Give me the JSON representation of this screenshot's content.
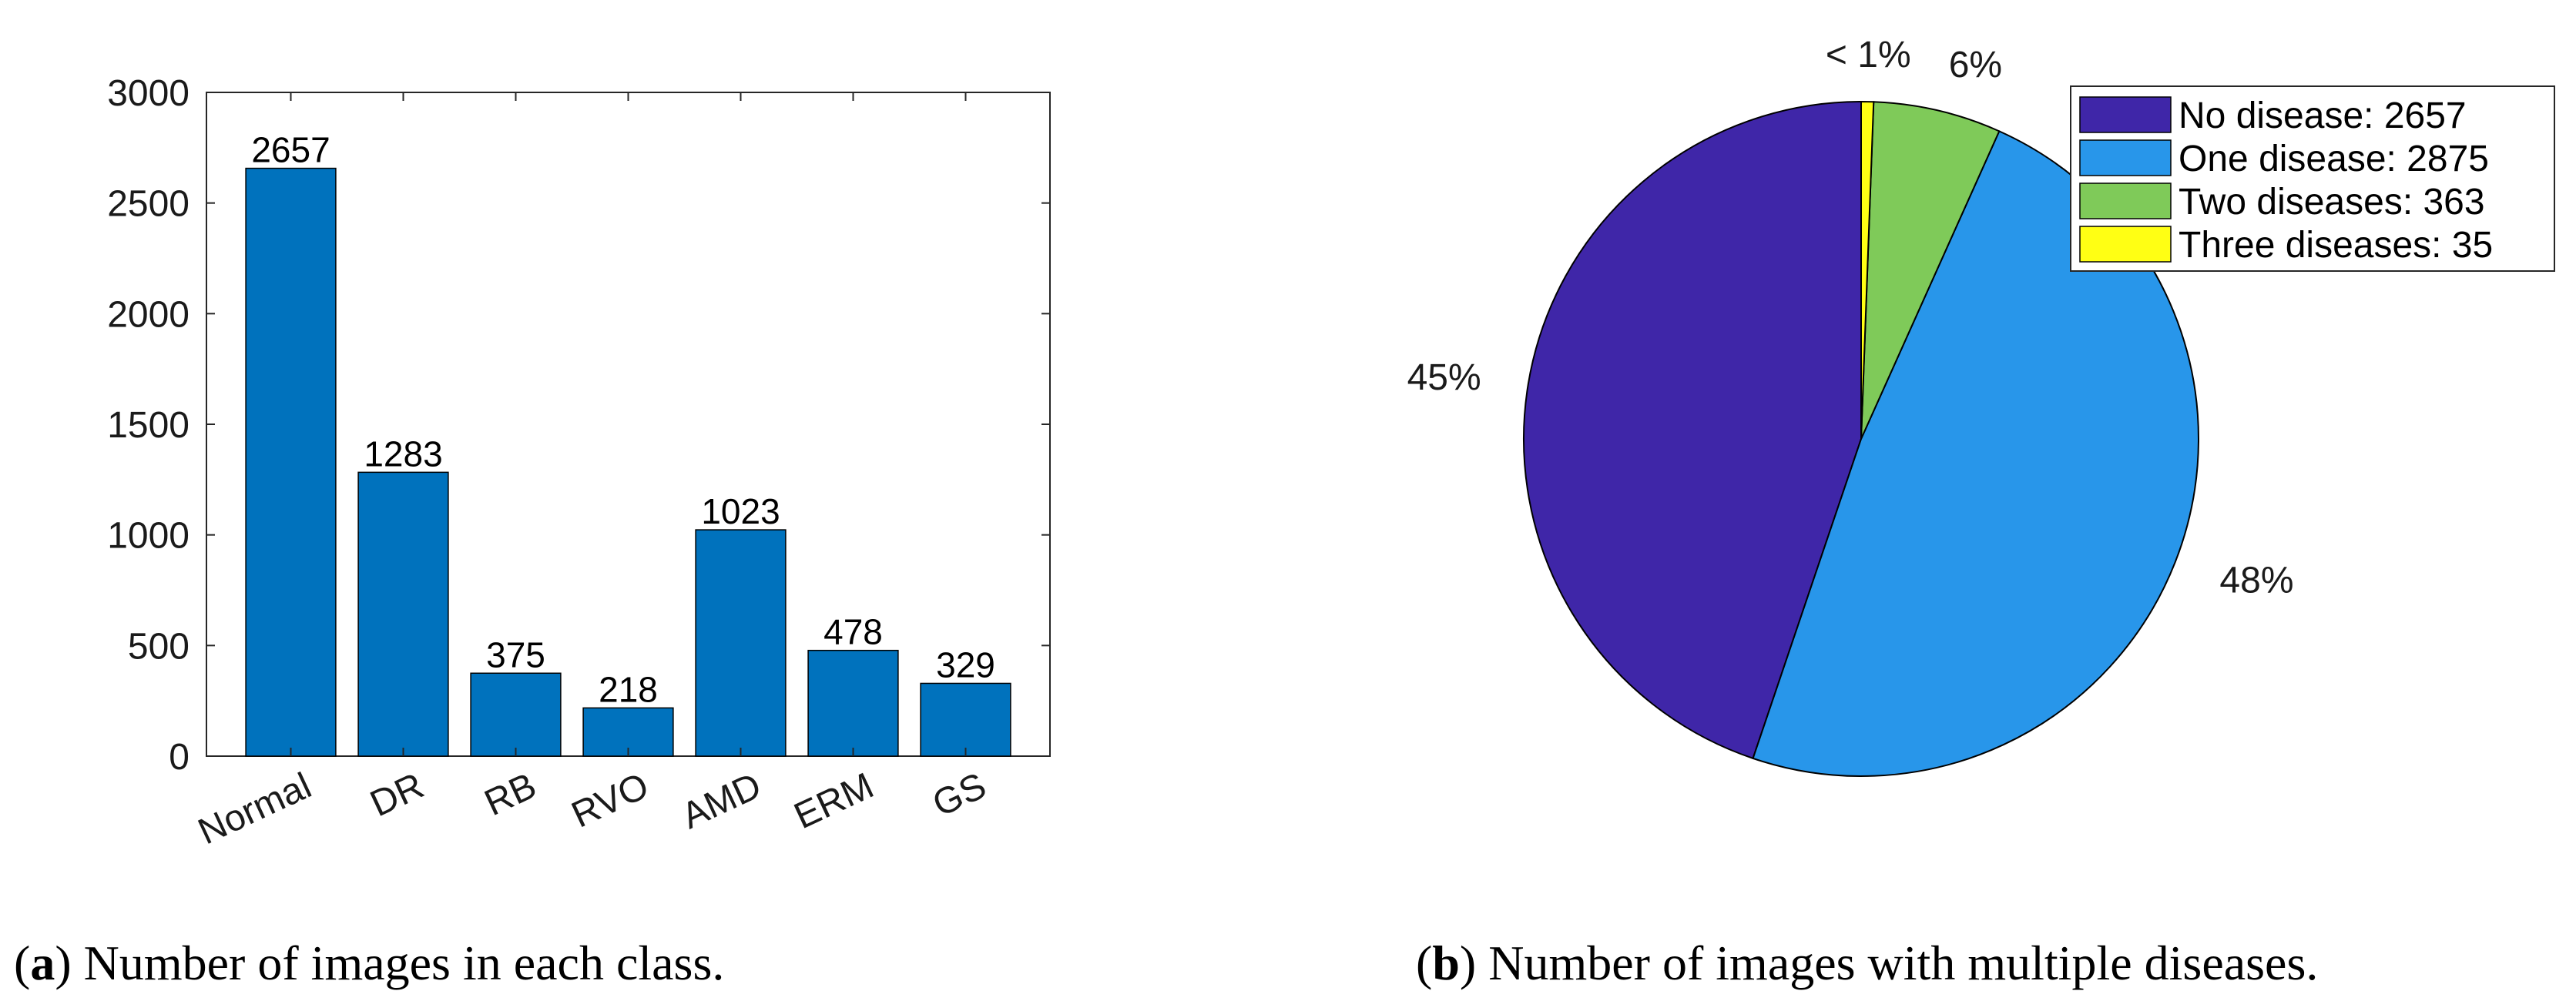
{
  "chart_data": [
    {
      "type": "bar",
      "caption": {
        "letter": "a",
        "text": " Number of images in each class."
      },
      "categories": [
        "Normal",
        "DR",
        "RB",
        "RVO",
        "AMD",
        "ERM",
        "GS"
      ],
      "values": [
        2657,
        1283,
        375,
        218,
        1023,
        478,
        329
      ],
      "data_labels": [
        "2657",
        "1283",
        "375",
        "218",
        "1023",
        "478",
        "329"
      ],
      "ylim": [
        0,
        3000
      ],
      "yticks": [
        0,
        500,
        1000,
        1500,
        2000,
        2500,
        3000
      ],
      "ytick_labels": [
        "0",
        "500",
        "1000",
        "1500",
        "2000",
        "2500",
        "3000"
      ],
      "color": "#0072BD",
      "grid": false,
      "xlabel": "",
      "ylabel": ""
    },
    {
      "type": "pie",
      "caption": {
        "letter": "b",
        "text": " Number of images with multiple diseases."
      },
      "slices": [
        {
          "label": "No disease: 2657",
          "value": 2657,
          "percent_label": "45%",
          "color": "#3F26A8"
        },
        {
          "label": "One disease: 2875",
          "value": 2875,
          "percent_label": "48%",
          "color": "#2896EA"
        },
        {
          "label": "Two diseases: 363",
          "value": 363,
          "percent_label": "6%",
          "color": "#7FCA59"
        },
        {
          "label": "Three diseases: 35",
          "value": 35,
          "percent_label": "< 1%",
          "color": "#FFFF14"
        }
      ],
      "legend_position": "top-right"
    }
  ]
}
